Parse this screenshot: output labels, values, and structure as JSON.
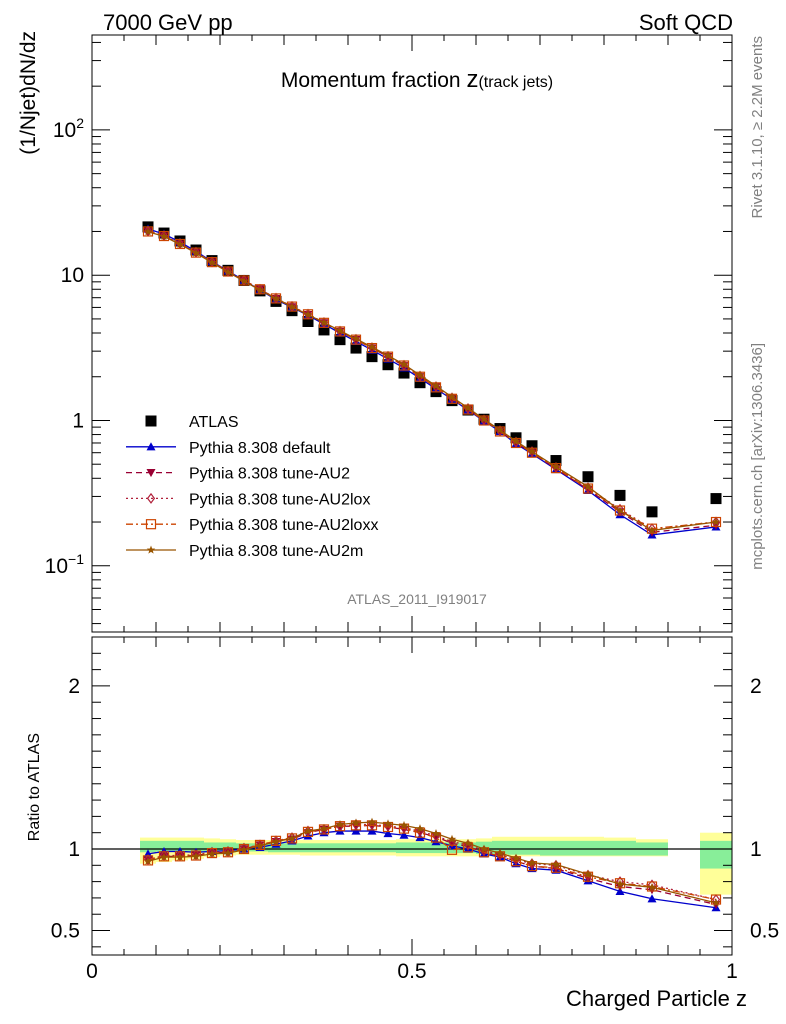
{
  "header": {
    "energy": "7000 GeV pp",
    "category": "Soft QCD"
  },
  "side": {
    "rivet": "Rivet 3.1.10, ≥ 2.2M events",
    "mcplots": "mcplots.cern.ch [arXiv:1306.3436]"
  },
  "colors": {
    "atlas": "#000000",
    "default": "#0000cc",
    "au2": "#990033",
    "au2lox": "#b0203a",
    "au2loxx": "#cc4400",
    "au2m": "#995500",
    "band_inner": "#88ee99",
    "band_outer": "#ffff99"
  },
  "chart_data": [
    {
      "type": "scatter",
      "title_main": "Momentum fraction ",
      "title_var": "z",
      "title_sub": "(track jets)",
      "watermark": "ATLAS_2011_I919017",
      "ylabel": "(1/Njet)dN/dz",
      "ylog": true,
      "ylim": [
        0.035,
        450
      ],
      "xlim": [
        0,
        1
      ],
      "ytick_labels": [
        {
          "value": 100,
          "base": "10",
          "exp": "2"
        },
        {
          "value": 10,
          "base": "10",
          "exp": ""
        },
        {
          "value": 1,
          "base": "1",
          "exp": ""
        },
        {
          "value": 0.1,
          "base": "10",
          "exp": "−1"
        }
      ],
      "legend_position": "center-left",
      "x": [
        0.0875,
        0.1125,
        0.1375,
        0.1625,
        0.1875,
        0.2125,
        0.2375,
        0.2625,
        0.2875,
        0.3125,
        0.3375,
        0.3625,
        0.3875,
        0.4125,
        0.4375,
        0.4625,
        0.4875,
        0.5125,
        0.5375,
        0.5625,
        0.5875,
        0.6125,
        0.6375,
        0.6625,
        0.6875,
        0.725,
        0.775,
        0.825,
        0.875,
        0.975
      ],
      "series": [
        {
          "key": "atlas",
          "name": "ATLAS",
          "marker": "square",
          "line": "none",
          "values": [
            21.5,
            19.5,
            17.2,
            14.9,
            12.6,
            10.8,
            9.2,
            7.8,
            6.6,
            5.7,
            4.8,
            4.2,
            3.6,
            3.15,
            2.75,
            2.42,
            2.12,
            1.82,
            1.58,
            1.37,
            1.18,
            1.02,
            0.88,
            0.76,
            0.67,
            0.53,
            0.41,
            0.305,
            0.235,
            0.29
          ]
        },
        {
          "key": "default",
          "name": "Pythia 8.308 default",
          "marker": "triangle-up",
          "line": "solid",
          "values": [
            20.8,
            19.2,
            16.9,
            14.6,
            12.4,
            10.7,
            9.2,
            7.9,
            6.8,
            6.0,
            5.3,
            4.6,
            4.0,
            3.5,
            3.05,
            2.65,
            2.3,
            1.95,
            1.65,
            1.4,
            1.18,
            0.99,
            0.84,
            0.69,
            0.59,
            0.46,
            0.33,
            0.225,
            0.163,
            0.185
          ]
        },
        {
          "key": "au2",
          "name": "Pythia 8.308 tune-AU2",
          "marker": "triangle-down",
          "line": "dashed",
          "values": [
            20.0,
            18.6,
            16.4,
            14.3,
            12.3,
            10.6,
            9.2,
            8.0,
            6.9,
            6.05,
            5.35,
            4.7,
            4.1,
            3.6,
            3.15,
            2.75,
            2.38,
            2.0,
            1.7,
            1.42,
            1.2,
            1.0,
            0.84,
            0.7,
            0.6,
            0.465,
            0.335,
            0.235,
            0.17,
            0.19
          ]
        },
        {
          "key": "au2lox",
          "name": "Pythia 8.308 tune-AU2lox",
          "marker": "diamond-open",
          "line": "dotted",
          "values": [
            20.1,
            18.7,
            16.5,
            14.4,
            12.35,
            10.65,
            9.25,
            8.0,
            6.95,
            6.1,
            5.4,
            4.72,
            4.12,
            3.62,
            3.17,
            2.77,
            2.4,
            2.02,
            1.71,
            1.43,
            1.21,
            1.01,
            0.85,
            0.71,
            0.61,
            0.475,
            0.345,
            0.245,
            0.18,
            0.2
          ]
        },
        {
          "key": "au2loxx",
          "name": "Pythia 8.308 tune-AU2loxx",
          "marker": "square-open",
          "line": "dashdot",
          "values": [
            20.0,
            18.6,
            16.4,
            14.3,
            12.3,
            10.6,
            9.2,
            8.0,
            6.92,
            6.08,
            5.38,
            4.7,
            4.1,
            3.6,
            3.15,
            2.75,
            2.39,
            2.0,
            1.69,
            1.41,
            1.19,
            1.0,
            0.84,
            0.7,
            0.6,
            0.47,
            0.34,
            0.24,
            0.18,
            0.2
          ]
        },
        {
          "key": "au2m",
          "name": "Pythia 8.308 tune-AU2m",
          "marker": "star",
          "line": "solid",
          "values": [
            19.9,
            18.5,
            16.3,
            14.2,
            12.2,
            10.5,
            9.1,
            7.9,
            6.9,
            6.05,
            5.35,
            4.72,
            4.15,
            3.65,
            3.2,
            2.8,
            2.43,
            2.05,
            1.73,
            1.45,
            1.22,
            1.02,
            0.86,
            0.72,
            0.61,
            0.48,
            0.35,
            0.24,
            0.175,
            0.2
          ]
        }
      ]
    },
    {
      "type": "line",
      "ylabel": "Ratio to ATLAS",
      "xlabel": "Charged Particle z",
      "ylim": [
        0.35,
        2.3
      ],
      "xlim": [
        0,
        1
      ],
      "xtick_labels": [
        {
          "value": 0,
          "label": "0"
        },
        {
          "value": 0.5,
          "label": "0.5"
        },
        {
          "value": 1,
          "label": "1"
        }
      ],
      "ytick_labels": [
        {
          "value": 2,
          "label": "2"
        },
        {
          "value": 1,
          "label": "1"
        },
        {
          "value": 0.5,
          "label": "0.5"
        }
      ],
      "bands": [
        {
          "x0": 0.075,
          "x1": 0.1,
          "inner": [
            0.98,
            1.05
          ],
          "outer": [
            0.91,
            1.07
          ]
        },
        {
          "x0": 0.1,
          "x1": 0.125,
          "inner": [
            0.985,
            1.05
          ],
          "outer": [
            0.92,
            1.07
          ]
        },
        {
          "x0": 0.125,
          "x1": 0.15,
          "inner": [
            0.985,
            1.05
          ],
          "outer": [
            0.93,
            1.07
          ]
        },
        {
          "x0": 0.15,
          "x1": 0.175,
          "inner": [
            0.985,
            1.05
          ],
          "outer": [
            0.94,
            1.07
          ]
        },
        {
          "x0": 0.175,
          "x1": 0.2,
          "inner": [
            0.985,
            1.04
          ],
          "outer": [
            0.95,
            1.065
          ]
        },
        {
          "x0": 0.2,
          "x1": 0.225,
          "inner": [
            0.985,
            1.04
          ],
          "outer": [
            0.96,
            1.06
          ]
        },
        {
          "x0": 0.225,
          "x1": 0.25,
          "inner": [
            0.985,
            1.035
          ],
          "outer": [
            0.965,
            1.055
          ]
        },
        {
          "x0": 0.25,
          "x1": 0.275,
          "inner": [
            0.985,
            1.035
          ],
          "outer": [
            0.965,
            1.055
          ]
        },
        {
          "x0": 0.275,
          "x1": 0.3,
          "inner": [
            0.98,
            1.035
          ],
          "outer": [
            0.965,
            1.055
          ]
        },
        {
          "x0": 0.3,
          "x1": 0.325,
          "inner": [
            0.98,
            1.035
          ],
          "outer": [
            0.965,
            1.055
          ]
        },
        {
          "x0": 0.325,
          "x1": 0.35,
          "inner": [
            0.98,
            1.035
          ],
          "outer": [
            0.96,
            1.055
          ]
        },
        {
          "x0": 0.35,
          "x1": 0.375,
          "inner": [
            0.98,
            1.035
          ],
          "outer": [
            0.96,
            1.055
          ]
        },
        {
          "x0": 0.375,
          "x1": 0.4,
          "inner": [
            0.98,
            1.035
          ],
          "outer": [
            0.96,
            1.055
          ]
        },
        {
          "x0": 0.4,
          "x1": 0.425,
          "inner": [
            0.98,
            1.035
          ],
          "outer": [
            0.96,
            1.055
          ]
        },
        {
          "x0": 0.425,
          "x1": 0.45,
          "inner": [
            0.98,
            1.035
          ],
          "outer": [
            0.96,
            1.055
          ]
        },
        {
          "x0": 0.45,
          "x1": 0.475,
          "inner": [
            0.98,
            1.035
          ],
          "outer": [
            0.96,
            1.055
          ]
        },
        {
          "x0": 0.475,
          "x1": 0.5,
          "inner": [
            0.975,
            1.04
          ],
          "outer": [
            0.955,
            1.06
          ]
        },
        {
          "x0": 0.5,
          "x1": 0.525,
          "inner": [
            0.975,
            1.04
          ],
          "outer": [
            0.955,
            1.06
          ]
        },
        {
          "x0": 0.525,
          "x1": 0.55,
          "inner": [
            0.975,
            1.04
          ],
          "outer": [
            0.955,
            1.06
          ]
        },
        {
          "x0": 0.55,
          "x1": 0.575,
          "inner": [
            0.975,
            1.04
          ],
          "outer": [
            0.955,
            1.06
          ]
        },
        {
          "x0": 0.575,
          "x1": 0.6,
          "inner": [
            0.975,
            1.04
          ],
          "outer": [
            0.955,
            1.06
          ]
        },
        {
          "x0": 0.6,
          "x1": 0.625,
          "inner": [
            0.97,
            1.045
          ],
          "outer": [
            0.955,
            1.065
          ]
        },
        {
          "x0": 0.625,
          "x1": 0.65,
          "inner": [
            0.97,
            1.05
          ],
          "outer": [
            0.955,
            1.075
          ]
        },
        {
          "x0": 0.65,
          "x1": 0.675,
          "inner": [
            0.965,
            1.05
          ],
          "outer": [
            0.955,
            1.075
          ]
        },
        {
          "x0": 0.675,
          "x1": 0.7,
          "inner": [
            0.965,
            1.05
          ],
          "outer": [
            0.955,
            1.075
          ]
        },
        {
          "x0": 0.7,
          "x1": 0.75,
          "inner": [
            0.96,
            1.05
          ],
          "outer": [
            0.955,
            1.075
          ]
        },
        {
          "x0": 0.75,
          "x1": 0.8,
          "inner": [
            0.96,
            1.05
          ],
          "outer": [
            0.955,
            1.075
          ]
        },
        {
          "x0": 0.8,
          "x1": 0.85,
          "inner": [
            0.96,
            1.05
          ],
          "outer": [
            0.955,
            1.07
          ]
        },
        {
          "x0": 0.85,
          "x1": 0.9,
          "inner": [
            0.96,
            1.04
          ],
          "outer": [
            0.955,
            1.06
          ]
        },
        {
          "x0": 0.95,
          "x1": 1.0,
          "inner": [
            0.88,
            1.05
          ],
          "outer": [
            0.72,
            1.1
          ]
        }
      ],
      "series": [
        {
          "key": "default",
          "values": [
            0.97,
            0.985,
            0.985,
            0.98,
            0.985,
            0.99,
            1.0,
            1.01,
            1.03,
            1.05,
            1.08,
            1.1,
            1.11,
            1.11,
            1.11,
            1.095,
            1.085,
            1.07,
            1.045,
            1.02,
            1.0,
            0.97,
            0.95,
            0.91,
            0.88,
            0.87,
            0.805,
            0.74,
            0.695,
            0.64
          ]
        },
        {
          "key": "au2",
          "values": [
            0.93,
            0.955,
            0.955,
            0.96,
            0.975,
            0.98,
            1.0,
            1.025,
            1.045,
            1.06,
            1.1,
            1.12,
            1.14,
            1.14,
            1.145,
            1.135,
            1.12,
            1.1,
            1.075,
            1.035,
            1.015,
            0.98,
            0.955,
            0.925,
            0.895,
            0.88,
            0.82,
            0.77,
            0.75,
            0.66
          ]
        },
        {
          "key": "au2lox",
          "values": [
            0.935,
            0.96,
            0.96,
            0.965,
            0.98,
            0.985,
            1.005,
            1.025,
            1.05,
            1.07,
            1.11,
            1.12,
            1.14,
            1.15,
            1.15,
            1.14,
            1.13,
            1.11,
            1.08,
            1.045,
            1.025,
            0.99,
            0.965,
            0.935,
            0.91,
            0.9,
            0.84,
            0.8,
            0.78,
            0.69
          ]
        },
        {
          "key": "au2loxx",
          "values": [
            0.93,
            0.955,
            0.955,
            0.96,
            0.975,
            0.98,
            1.0,
            1.025,
            1.05,
            1.065,
            1.105,
            1.12,
            1.14,
            1.145,
            1.145,
            1.135,
            1.125,
            1.1,
            1.07,
            0.995,
            1.01,
            0.98,
            0.955,
            0.925,
            0.895,
            0.885,
            0.83,
            0.79,
            0.77,
            0.69
          ]
        },
        {
          "key": "au2m",
          "values": [
            0.925,
            0.95,
            0.95,
            0.955,
            0.97,
            0.975,
            0.995,
            1.02,
            1.045,
            1.065,
            1.11,
            1.125,
            1.15,
            1.16,
            1.165,
            1.155,
            1.145,
            1.125,
            1.095,
            1.06,
            1.035,
            1.0,
            0.975,
            0.945,
            0.915,
            0.905,
            0.845,
            0.785,
            0.765,
            0.67
          ]
        }
      ]
    }
  ]
}
